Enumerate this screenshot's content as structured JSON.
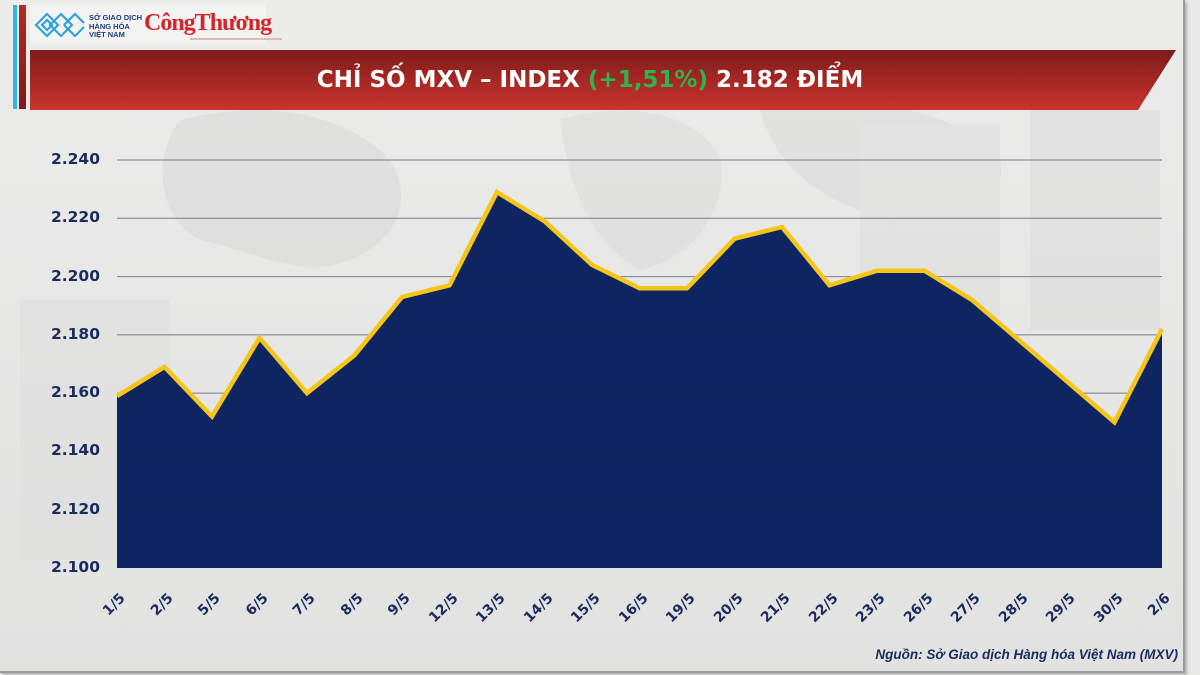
{
  "header": {
    "logo_mxv_lines": [
      "SỞ GIAO DỊCH",
      "HÀNG HÓA",
      "VIỆT NAM"
    ],
    "logo_publication": "CôngThương",
    "title_prefix": "CHỈ SỐ MXV – INDEX",
    "title_change": "(+1,51%)",
    "title_value": "2.182 ĐIỂM",
    "change_color": "#2fb34a",
    "banner_color": "#b82b27"
  },
  "chart_data": {
    "type": "area",
    "title": "CHỈ SỐ MXV – INDEX (+1,51%) 2.182 ĐIỂM",
    "xlabel": "",
    "ylabel": "",
    "categories": [
      "1/5",
      "2/5",
      "5/5",
      "6/5",
      "7/5",
      "8/5",
      "9/5",
      "12/5",
      "13/5",
      "14/5",
      "15/5",
      "16/5",
      "19/5",
      "20/5",
      "21/5",
      "22/5",
      "23/5",
      "26/5",
      "27/5",
      "28/5",
      "29/5",
      "30/5",
      "2/6"
    ],
    "values": [
      2159,
      2169,
      2152,
      2179,
      2160,
      2173,
      2193,
      2197,
      2229,
      2219,
      2204,
      2196,
      2196,
      2213,
      2217,
      2197,
      2202,
      2202,
      2192,
      2178,
      2164,
      2150,
      2182
    ],
    "ylim": [
      2100,
      2240
    ],
    "yticks": [
      2100,
      2120,
      2140,
      2160,
      2180,
      2200,
      2220,
      2240
    ],
    "ytick_labels": [
      "2.100",
      "2.120",
      "2.140",
      "2.160",
      "2.180",
      "2.200",
      "2.220",
      "2.240"
    ],
    "grid": true,
    "legend": "none",
    "line_color": "#f5c518",
    "fill_top_color": "#8d9bb8",
    "fill_bottom_color": "#0f2562"
  },
  "footer": {
    "source": "Nguồn: Sở Giao dịch Hàng hóa Việt Nam (MXV)"
  }
}
